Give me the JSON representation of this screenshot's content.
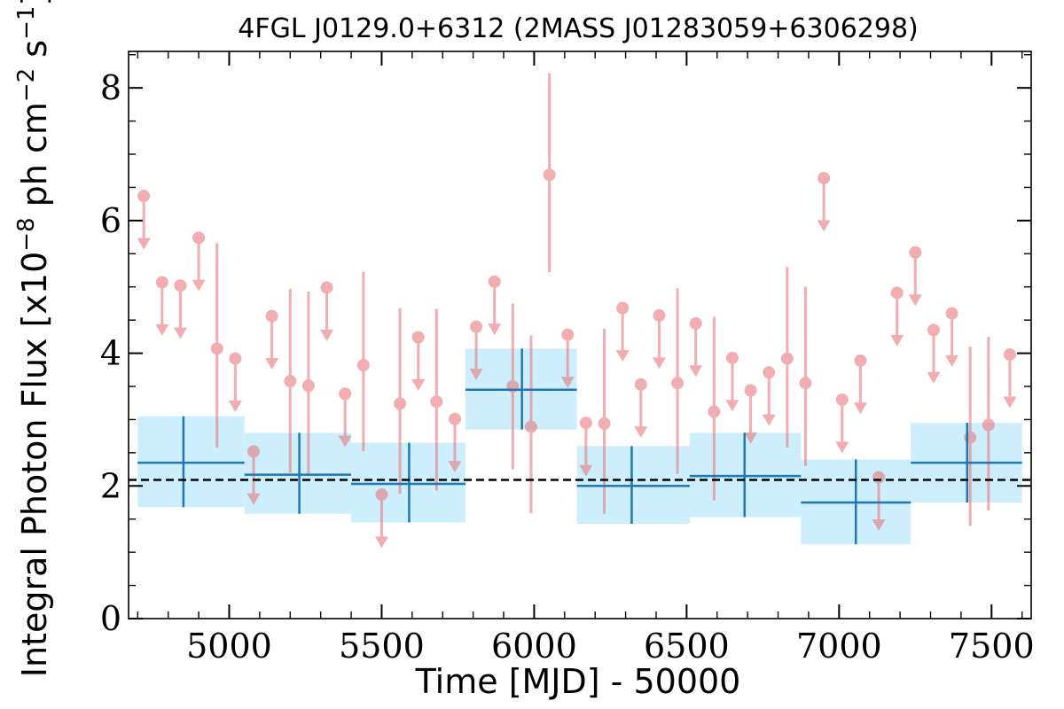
{
  "chart_data": {
    "type": "scatter",
    "title": "4FGL J0129.0+6312 (2MASS J01283059+6306298)",
    "xlabel": "Time [MJD] - 50000",
    "ylabel": "Integral Photon Flux [x10",
    "ylabel_exp1": "−8",
    "ylabel_mid": " ph cm",
    "ylabel_exp2": "−2",
    "ylabel_mid2": " s",
    "ylabel_exp3": "−1",
    "ylabel_end": "]",
    "xlim": [
      4670,
      7630
    ],
    "ylim": [
      0,
      8.55
    ],
    "xticks": [
      5000,
      5500,
      6000,
      6500,
      7000,
      7500
    ],
    "xtick_labels": [
      "5000",
      "5500",
      "6000",
      "6500",
      "7000",
      "7500"
    ],
    "yticks": [
      0,
      2,
      4,
      6,
      8
    ],
    "ytick_labels": [
      "0",
      "2",
      "4",
      "6",
      "8"
    ],
    "reference_level": 2.09,
    "colors": {
      "points": "#e8787d",
      "bins": "#1f77b4",
      "bin_band": "#cdeefc",
      "reference": "#000000"
    },
    "binned_series": [
      {
        "x0": 4700,
        "x1": 5050,
        "xc": 4850,
        "y": 2.35,
        "lo": 1.68,
        "hi": 3.05
      },
      {
        "x0": 5050,
        "x1": 5400,
        "xc": 5230,
        "y": 2.17,
        "lo": 1.58,
        "hi": 2.8
      },
      {
        "x0": 5400,
        "x1": 5775,
        "xc": 5590,
        "y": 2.03,
        "lo": 1.45,
        "hi": 2.65
      },
      {
        "x0": 5775,
        "x1": 6140,
        "xc": 5960,
        "y": 3.45,
        "lo": 2.85,
        "hi": 4.07
      },
      {
        "x0": 6140,
        "x1": 6510,
        "xc": 6320,
        "y": 2.0,
        "lo": 1.43,
        "hi": 2.6
      },
      {
        "x0": 6510,
        "x1": 6875,
        "xc": 6690,
        "y": 2.15,
        "lo": 1.53,
        "hi": 2.8
      },
      {
        "x0": 6875,
        "x1": 7235,
        "xc": 7055,
        "y": 1.75,
        "lo": 1.12,
        "hi": 2.4
      },
      {
        "x0": 7235,
        "x1": 7600,
        "xc": 7420,
        "y": 2.35,
        "lo": 1.75,
        "hi": 2.95
      }
    ],
    "points": [
      {
        "x": 4720,
        "y": 6.37,
        "ul": true
      },
      {
        "x": 4780,
        "y": 5.07,
        "ul": true
      },
      {
        "x": 4840,
        "y": 5.02,
        "ul": true
      },
      {
        "x": 4900,
        "y": 5.74,
        "ul": true
      },
      {
        "x": 4960,
        "y": 4.07,
        "ul": false,
        "lo": 2.58,
        "hi": 5.66
      },
      {
        "x": 5020,
        "y": 3.92,
        "ul": true
      },
      {
        "x": 5080,
        "y": 2.52,
        "ul": true
      },
      {
        "x": 5140,
        "y": 4.56,
        "ul": true
      },
      {
        "x": 5200,
        "y": 3.58,
        "ul": false,
        "lo": 2.2,
        "hi": 4.97
      },
      {
        "x": 5260,
        "y": 3.51,
        "ul": false,
        "lo": 2.15,
        "hi": 4.93
      },
      {
        "x": 5320,
        "y": 4.99,
        "ul": true
      },
      {
        "x": 5380,
        "y": 3.39,
        "ul": true
      },
      {
        "x": 5440,
        "y": 3.82,
        "ul": false,
        "lo": 2.52,
        "hi": 5.23
      },
      {
        "x": 5500,
        "y": 1.87,
        "ul": true
      },
      {
        "x": 5560,
        "y": 3.24,
        "ul": false,
        "lo": 1.88,
        "hi": 4.68
      },
      {
        "x": 5620,
        "y": 4.24,
        "ul": true
      },
      {
        "x": 5680,
        "y": 3.27,
        "ul": false,
        "lo": 1.93,
        "hi": 4.67
      },
      {
        "x": 5740,
        "y": 3.01,
        "ul": true
      },
      {
        "x": 5810,
        "y": 4.4,
        "ul": true
      },
      {
        "x": 5870,
        "y": 5.08,
        "ul": true
      },
      {
        "x": 5930,
        "y": 3.5,
        "ul": false,
        "lo": 2.25,
        "hi": 4.75
      },
      {
        "x": 5990,
        "y": 2.89,
        "ul": false,
        "lo": 1.59,
        "hi": 4.27
      },
      {
        "x": 6050,
        "y": 6.69,
        "ul": false,
        "lo": 5.22,
        "hi": 8.22
      },
      {
        "x": 6110,
        "y": 4.28,
        "ul": true
      },
      {
        "x": 6170,
        "y": 2.95,
        "ul": true
      },
      {
        "x": 6230,
        "y": 2.94,
        "ul": false,
        "lo": 1.58,
        "hi": 4.37
      },
      {
        "x": 6290,
        "y": 4.68,
        "ul": true
      },
      {
        "x": 6350,
        "y": 3.53,
        "ul": true
      },
      {
        "x": 6410,
        "y": 4.57,
        "ul": true
      },
      {
        "x": 6470,
        "y": 3.55,
        "ul": false,
        "lo": 2.18,
        "hi": 4.98
      },
      {
        "x": 6530,
        "y": 4.45,
        "ul": true
      },
      {
        "x": 6590,
        "y": 3.12,
        "ul": false,
        "lo": 1.78,
        "hi": 4.55
      },
      {
        "x": 6650,
        "y": 3.93,
        "ul": true
      },
      {
        "x": 6710,
        "y": 3.44,
        "ul": true
      },
      {
        "x": 6770,
        "y": 3.71,
        "ul": true
      },
      {
        "x": 6830,
        "y": 3.92,
        "ul": false,
        "lo": 2.58,
        "hi": 5.3
      },
      {
        "x": 6890,
        "y": 3.55,
        "ul": false,
        "lo": 2.3,
        "hi": 5.0
      },
      {
        "x": 6950,
        "y": 6.64,
        "ul": true
      },
      {
        "x": 7010,
        "y": 3.3,
        "ul": true
      },
      {
        "x": 7070,
        "y": 3.89,
        "ul": true
      },
      {
        "x": 7130,
        "y": 2.13,
        "ul": true
      },
      {
        "x": 7190,
        "y": 4.91,
        "ul": true
      },
      {
        "x": 7250,
        "y": 5.52,
        "ul": true
      },
      {
        "x": 7310,
        "y": 4.35,
        "ul": true
      },
      {
        "x": 7370,
        "y": 4.6,
        "ul": true
      },
      {
        "x": 7430,
        "y": 2.73,
        "ul": false,
        "lo": 1.4,
        "hi": 4.1
      },
      {
        "x": 7490,
        "y": 2.92,
        "ul": false,
        "lo": 1.63,
        "hi": 4.25
      },
      {
        "x": 7560,
        "y": 3.98,
        "ul": true
      }
    ]
  }
}
